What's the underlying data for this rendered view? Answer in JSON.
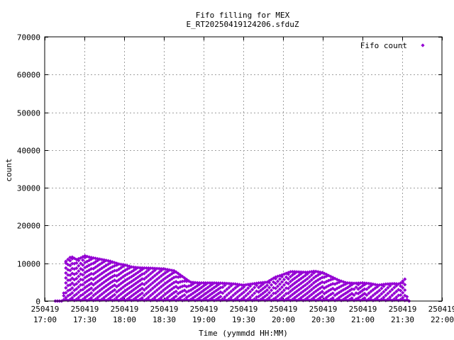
{
  "chart_data": {
    "type": "scatter",
    "title": "Fifo filling for MEX",
    "subtitle": "E_RT20250419124206.sfduZ",
    "xlabel": "Time (yymmdd HH:MM)",
    "ylabel": "count",
    "xlim": [
      "17:00",
      "22:00"
    ],
    "ylim": [
      0,
      70000
    ],
    "y_ticks": [
      0,
      10000,
      20000,
      30000,
      40000,
      50000,
      60000,
      70000
    ],
    "x_ticks": [
      {
        "date": "250419",
        "time": "17:00"
      },
      {
        "date": "250419",
        "time": "17:30"
      },
      {
        "date": "250419",
        "time": "18:00"
      },
      {
        "date": "250419",
        "time": "18:30"
      },
      {
        "date": "250419",
        "time": "19:00"
      },
      {
        "date": "250419",
        "time": "19:30"
      },
      {
        "date": "250419",
        "time": "20:00"
      },
      {
        "date": "250419",
        "time": "20:30"
      },
      {
        "date": "250419",
        "time": "21:00"
      },
      {
        "date": "250419",
        "time": "21:30"
      },
      {
        "date": "250419",
        "time": "22:00"
      }
    ],
    "grid": true,
    "legend_position": "top-right",
    "series": [
      {
        "name": "Fifo count",
        "color": "#9400d3",
        "marker": "diamond",
        "envelope": [
          [
            "17:08",
            0
          ],
          [
            "17:14",
            0
          ],
          [
            "17:16",
            10500
          ],
          [
            "17:20",
            11800
          ],
          [
            "17:24",
            11000
          ],
          [
            "17:28",
            11500
          ],
          [
            "17:30",
            12000
          ],
          [
            "17:34",
            11600
          ],
          [
            "17:40",
            11200
          ],
          [
            "17:46",
            10800
          ],
          [
            "17:50",
            10500
          ],
          [
            "17:56",
            9800
          ],
          [
            "18:00",
            9600
          ],
          [
            "18:06",
            9000
          ],
          [
            "18:12",
            8800
          ],
          [
            "18:20",
            8700
          ],
          [
            "18:26",
            8600
          ],
          [
            "18:30",
            8500
          ],
          [
            "18:38",
            8000
          ],
          [
            "18:44",
            6500
          ],
          [
            "18:50",
            5000
          ],
          [
            "18:56",
            4800
          ],
          [
            "19:06",
            4800
          ],
          [
            "19:16",
            4700
          ],
          [
            "19:24",
            4500
          ],
          [
            "19:30",
            4200
          ],
          [
            "19:36",
            4500
          ],
          [
            "19:42",
            4800
          ],
          [
            "19:48",
            5000
          ],
          [
            "19:54",
            6300
          ],
          [
            "20:00",
            7000
          ],
          [
            "20:06",
            7800
          ],
          [
            "20:12",
            7700
          ],
          [
            "20:18",
            7600
          ],
          [
            "20:24",
            7900
          ],
          [
            "20:30",
            7500
          ],
          [
            "20:36",
            6500
          ],
          [
            "20:42",
            5500
          ],
          [
            "20:48",
            4800
          ],
          [
            "20:54",
            4700
          ],
          [
            "21:00",
            4800
          ],
          [
            "21:06",
            4600
          ],
          [
            "21:12",
            4200
          ],
          [
            "21:18",
            4500
          ],
          [
            "21:24",
            4600
          ],
          [
            "21:28",
            4500
          ],
          [
            "21:32",
            5800
          ],
          [
            "21:34",
            0
          ],
          [
            "21:36",
            0
          ]
        ]
      }
    ]
  }
}
